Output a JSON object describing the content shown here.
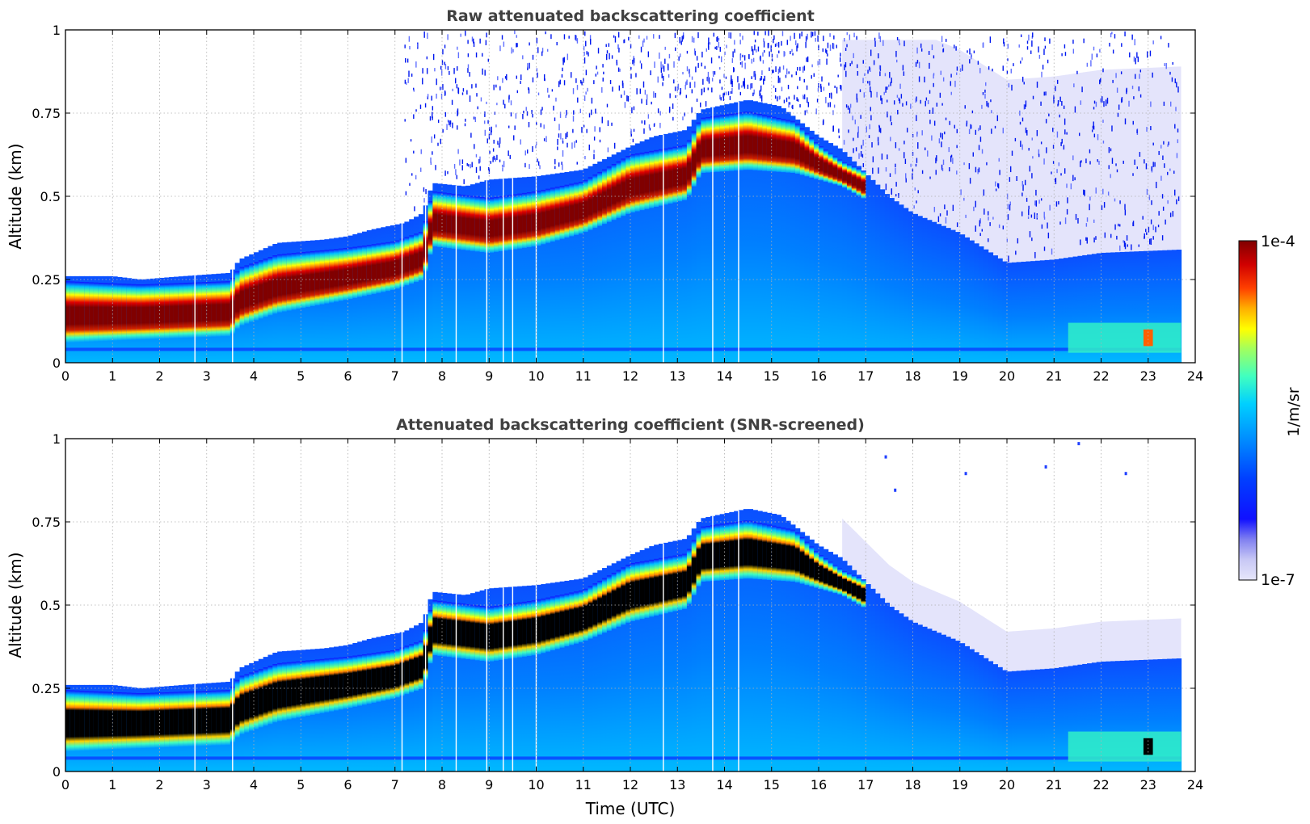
{
  "chart_data": [
    {
      "type": "heatmap",
      "title": "Raw attenuated backscattering coefficient",
      "xlabel": "",
      "ylabel": "Altitude (km)",
      "xlim": [
        0,
        24
      ],
      "ylim": [
        0,
        1
      ],
      "xticks": [
        "0",
        "1",
        "2",
        "3",
        "4",
        "5",
        "6",
        "7",
        "8",
        "9",
        "10",
        "11",
        "12",
        "13",
        "14",
        "15",
        "16",
        "17",
        "18",
        "19",
        "20",
        "21",
        "22",
        "23",
        "24"
      ],
      "yticks": [
        "0",
        "0.25",
        "0.5",
        "0.75",
        "1"
      ],
      "ytick_values": [
        0,
        0.25,
        0.5,
        0.75,
        1
      ],
      "grid": true,
      "screened": false,
      "data_end_hour": 23.7,
      "layer_top_km": [
        [
          0,
          0.26
        ],
        [
          1,
          0.26
        ],
        [
          1.6,
          0.25
        ],
        [
          2.5,
          0.26
        ],
        [
          3.5,
          0.27
        ],
        [
          3.7,
          0.31
        ],
        [
          4.5,
          0.36
        ],
        [
          5.5,
          0.37
        ],
        [
          6,
          0.38
        ],
        [
          6.5,
          0.4
        ],
        [
          7.2,
          0.42
        ],
        [
          7.6,
          0.45
        ],
        [
          7.8,
          0.54
        ],
        [
          8.5,
          0.53
        ],
        [
          9,
          0.55
        ],
        [
          10,
          0.56
        ],
        [
          11,
          0.58
        ],
        [
          12,
          0.65
        ],
        [
          12.5,
          0.68
        ],
        [
          13.2,
          0.7
        ],
        [
          13.5,
          0.76
        ],
        [
          14.5,
          0.79
        ],
        [
          15.2,
          0.77
        ],
        [
          16,
          0.68
        ],
        [
          16.5,
          0.64
        ],
        [
          17,
          0.57
        ],
        [
          17.5,
          0.5
        ],
        [
          18,
          0.45
        ],
        [
          19,
          0.39
        ],
        [
          20,
          0.3
        ],
        [
          21,
          0.31
        ],
        [
          22,
          0.33
        ],
        [
          23.7,
          0.34
        ]
      ],
      "core_top_km": [
        [
          0,
          0.22
        ],
        [
          1.6,
          0.21
        ],
        [
          3.5,
          0.22
        ],
        [
          3.7,
          0.26
        ],
        [
          4.5,
          0.3
        ],
        [
          6,
          0.32
        ],
        [
          7,
          0.34
        ],
        [
          7.6,
          0.37
        ],
        [
          7.8,
          0.49
        ],
        [
          9,
          0.47
        ],
        [
          10,
          0.49
        ],
        [
          11,
          0.52
        ],
        [
          12,
          0.6
        ],
        [
          13.2,
          0.63
        ],
        [
          13.5,
          0.71
        ],
        [
          14.5,
          0.73
        ],
        [
          15.5,
          0.7
        ],
        [
          16,
          0.63
        ],
        [
          16.5,
          0.58
        ],
        [
          17,
          0.55
        ]
      ],
      "core_bottom_km": [
        [
          0,
          0.09
        ],
        [
          1.6,
          0.1
        ],
        [
          3.5,
          0.11
        ],
        [
          3.7,
          0.14
        ],
        [
          4.5,
          0.18
        ],
        [
          6,
          0.22
        ],
        [
          7,
          0.25
        ],
        [
          7.6,
          0.28
        ],
        [
          7.8,
          0.38
        ],
        [
          9,
          0.36
        ],
        [
          10,
          0.38
        ],
        [
          11,
          0.42
        ],
        [
          12,
          0.48
        ],
        [
          13.2,
          0.52
        ],
        [
          13.5,
          0.6
        ],
        [
          14.5,
          0.61
        ],
        [
          15.5,
          0.6
        ],
        [
          16,
          0.58
        ],
        [
          16.5,
          0.56
        ],
        [
          17,
          0.52
        ]
      ]
    },
    {
      "type": "heatmap",
      "title": "Attenuated backscattering coefficient (SNR-screened)",
      "xlabel": "Time (UTC)",
      "ylabel": "Altitude (km)",
      "xlim": [
        0,
        24
      ],
      "ylim": [
        0,
        1
      ],
      "xticks": [
        "0",
        "1",
        "2",
        "3",
        "4",
        "5",
        "6",
        "7",
        "8",
        "9",
        "10",
        "11",
        "12",
        "13",
        "14",
        "15",
        "16",
        "17",
        "18",
        "19",
        "20",
        "21",
        "22",
        "23",
        "24"
      ],
      "yticks": [
        "0",
        "0.25",
        "0.5",
        "0.75",
        "1"
      ],
      "ytick_values": [
        0,
        0.25,
        0.5,
        0.75,
        1
      ],
      "grid": true,
      "screened": true,
      "data_end_hour": 23.7
    }
  ],
  "colorbar": {
    "label": "1/m/sr",
    "max_label": "1e-4",
    "min_label": "1e-7",
    "scale": "log",
    "range": [
      1e-07,
      0.0001
    ],
    "colors": [
      "#e6e6fa",
      "#c8c8f5",
      "#8080f0",
      "#1010ff",
      "#0040ff",
      "#0090ff",
      "#00d0ff",
      "#40ffc0",
      "#a0ff60",
      "#ffff00",
      "#ffb000",
      "#ff4000",
      "#d00000",
      "#800000"
    ]
  }
}
